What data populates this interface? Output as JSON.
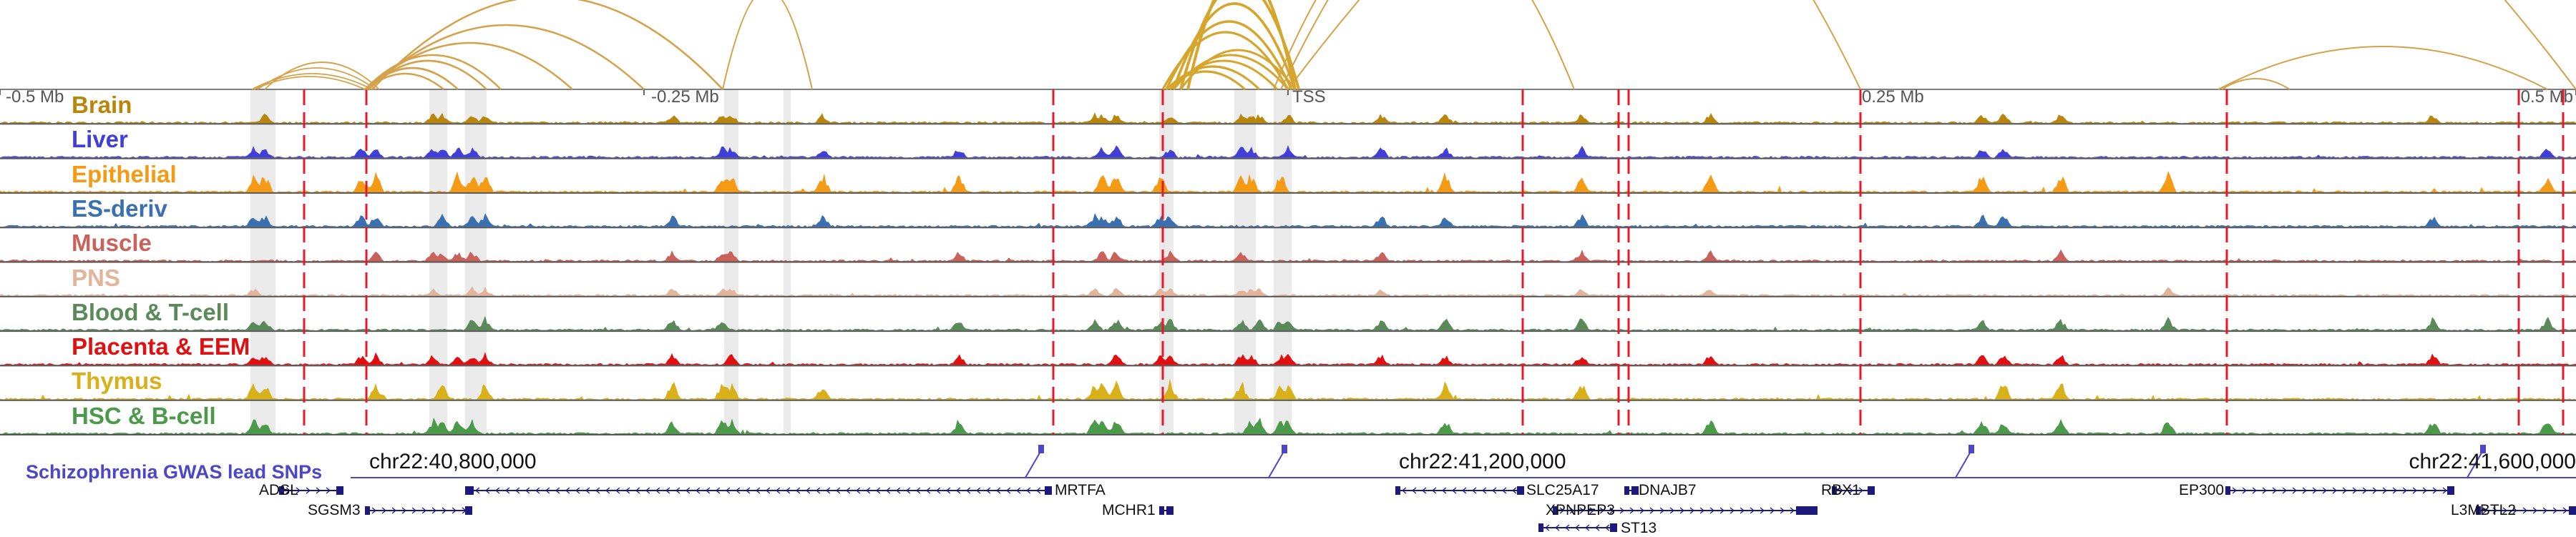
{
  "colors": {
    "arc": "#d4a24a",
    "arc_thick": "#d6a52c",
    "red_line": "#e8182a",
    "gray_band": "#d9d9d9",
    "gene": "#1c1a7a",
    "snp": "#4c46c8",
    "divider": "#555555"
  },
  "ruler": {
    "ticks": [
      {
        "label": "-0.5 Mb",
        "align": "left"
      },
      {
        "label": "-0.25 Mb",
        "align": "left"
      },
      {
        "label": "TSS",
        "align": "left"
      },
      {
        "label": "0.25 Mb",
        "align": "left"
      },
      {
        "label": "0.5 Mb",
        "align": "right"
      }
    ]
  },
  "tracks": [
    {
      "name": "Brain",
      "color": "#b8860b"
    },
    {
      "name": "Liver",
      "color": "#4040d8"
    },
    {
      "name": "Epithelial",
      "color": "#f59a14"
    },
    {
      "name": "ES-deriv",
      "color": "#3a6fb0"
    },
    {
      "name": "Muscle",
      "color": "#c8625a"
    },
    {
      "name": "PNS",
      "color": "#e2b59a"
    },
    {
      "name": "Blood & T-cell",
      "color": "#5a8a5a"
    },
    {
      "name": "Placenta & EEM",
      "color": "#e01010"
    },
    {
      "name": "Thymus",
      "color": "#d8b01a"
    },
    {
      "name": "HSC & B-cell",
      "color": "#4a9a4a"
    }
  ],
  "coords": [
    {
      "label": "chr22:40,800,000"
    },
    {
      "label": "chr22:41,200,000"
    },
    {
      "label": "chr22:41,600,000"
    }
  ],
  "snp_track": {
    "label": "Schizophrenia GWAS lead SNPs"
  },
  "genes": [
    {
      "name": "ADSL"
    },
    {
      "name": "SGSM3"
    },
    {
      "name": "MRTFA"
    },
    {
      "name": "MCHR1"
    },
    {
      "name": "SLC25A17"
    },
    {
      "name": "DNAJB7"
    },
    {
      "name": "XPNPEP3"
    },
    {
      "name": "ST13"
    },
    {
      "name": "RBX1"
    },
    {
      "name": "EP300"
    },
    {
      "name": "L3MBTL2"
    }
  ]
}
